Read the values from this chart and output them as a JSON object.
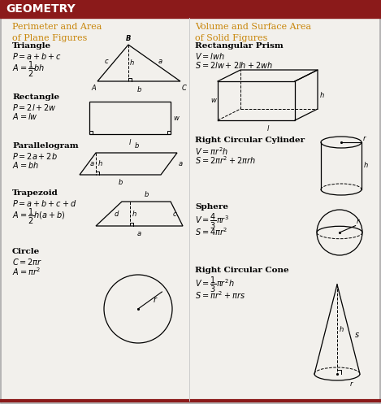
{
  "title": "GEOMETRY",
  "title_bg": "#8B1A1A",
  "title_color": "#FFFFFF",
  "header_left": "Perimeter and Area\nof Plane Figures",
  "header_right": "Volume and Surface Area\nof Solid Figures",
  "header_color": "#C8860A",
  "bg_color": "#F2F0EC",
  "text_color": "#000000",
  "fig_color": "#000000",
  "accent_color": "#8B1A1A"
}
